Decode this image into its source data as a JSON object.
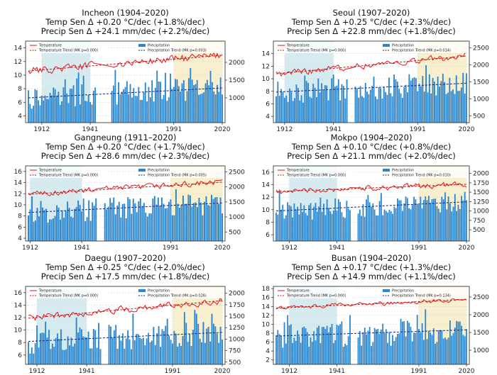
{
  "colors": {
    "temperature": "#e0262b",
    "temp_trend": "#b81d1d",
    "precip_bar": "#2b86cf",
    "precip_trend": "#1a237e",
    "shade_blue": "#cfe8ec",
    "shade_yellow": "#f6ecc4"
  },
  "legend_labels": {
    "temperature": "Temperature",
    "temp_trend": "Temperature Trend (MK p=0.000)",
    "precipitation": "Precipitation"
  },
  "chart_data": [
    {
      "type": "bar+line",
      "title": [
        "Incheon (1904–2020)",
        "Temp Sen Δ +0.20 °C/dec (+1.8%/dec)",
        "Precip Sen Δ +24.1 mm/dec (+2.2%/dec)"
      ],
      "x_range": [
        1904,
        2020
      ],
      "x_ticks": [
        1912,
        1941,
        1991,
        2020
      ],
      "shaded": [
        {
          "from": 1912,
          "to": 1941,
          "color": "blue"
        },
        {
          "from": 1991,
          "to": 2020,
          "color": "yellow"
        }
      ],
      "gap": [
        1945,
        1953
      ],
      "temp_axis": {
        "range": [
          3,
          15
        ],
        "ticks": [
          4,
          6,
          8,
          10,
          12,
          14
        ]
      },
      "precip_axis": {
        "range": [
          300,
          2600
        ],
        "ticks": [
          1000,
          1500,
          2000
        ]
      },
      "temp_start": 10.6,
      "temp_trend_slope": 0.02,
      "temp_noise": 0.5,
      "precip_start": 1000,
      "precip_trend_slope": 2.4,
      "precip_noise": 330,
      "precip_trend_label": "Precipitation Trend (MK p=0.003)"
    },
    {
      "type": "bar+line",
      "title": [
        "Seoul (1907–2020)",
        "Temp Sen Δ +0.25 °C/dec (+2.3%/dec)",
        "Precip Sen Δ +22.8 mm/dec (+1.8%/dec)"
      ],
      "x_range": [
        1907,
        2020
      ],
      "x_ticks": [
        1912,
        1941,
        1991,
        2020
      ],
      "shaded": [
        {
          "from": 1912,
          "to": 1941,
          "color": "blue"
        },
        {
          "from": 1991,
          "to": 2020,
          "color": "yellow"
        }
      ],
      "gap": [
        1950,
        1953
      ],
      "temp_axis": {
        "range": [
          3,
          16
        ],
        "ticks": [
          4,
          6,
          8,
          10,
          12,
          14
        ]
      },
      "precip_axis": {
        "range": [
          300,
          2700
        ],
        "ticks": [
          500,
          1000,
          1500,
          2000,
          2500
        ]
      },
      "temp_start": 10.8,
      "temp_trend_slope": 0.025,
      "temp_noise": 0.5,
      "precip_start": 1200,
      "precip_trend_slope": 2.3,
      "precip_noise": 350,
      "precip_trend_label": "Precipitation Trend (MK p=0.014)"
    },
    {
      "type": "bar+line",
      "title": [
        "Gangneung (1911–2020)",
        "Temp Sen Δ +0.20 °C/dec (+1.7%/dec)",
        "Precip Sen Δ +28.6 mm/dec (+2.3%/dec)"
      ],
      "x_range": [
        1911,
        2020
      ],
      "x_ticks": [
        1912,
        1941,
        1991,
        2020
      ],
      "shaded": [
        {
          "from": 1912,
          "to": 1941,
          "color": "blue"
        },
        {
          "from": 1991,
          "to": 2020,
          "color": "yellow"
        }
      ],
      "gap": [
        1950,
        1953
      ],
      "temp_axis": {
        "range": [
          3.5,
          17
        ],
        "ticks": [
          4,
          6,
          8,
          10,
          12,
          14,
          16
        ]
      },
      "precip_axis": {
        "range": [
          200,
          2700
        ],
        "ticks": [
          500,
          1000,
          1500,
          2000,
          2500
        ]
      },
      "temp_start": 11.9,
      "temp_trend_slope": 0.02,
      "temp_noise": 0.5,
      "precip_start": 1150,
      "precip_trend_slope": 2.9,
      "precip_noise": 380,
      "precip_trend_label": "Precipitation Trend (MK p=0.005)"
    },
    {
      "type": "bar+line",
      "title": [
        "Mokpo (1904–2020)",
        "Temp Sen Δ +0.10 °C/dec (+0.8%/dec)",
        "Precip Sen Δ +21.1 mm/dec (+2.0%/dec)"
      ],
      "x_range": [
        1904,
        2020
      ],
      "x_ticks": [
        1912,
        1941,
        1991,
        2020
      ],
      "shaded": [
        {
          "from": 1912,
          "to": 1941,
          "color": "blue"
        },
        {
          "from": 1991,
          "to": 2020,
          "color": "yellow"
        }
      ],
      "gap": [
        1950,
        1953
      ],
      "temp_axis": {
        "range": [
          5,
          17
        ],
        "ticks": [
          6,
          8,
          10,
          12,
          14,
          16
        ]
      },
      "precip_axis": {
        "range": [
          200,
          2200
        ],
        "ticks": [
          500,
          750,
          1000,
          1250,
          1500,
          1750,
          2000
        ]
      },
      "temp_start": 12.9,
      "temp_trend_slope": 0.01,
      "temp_noise": 0.4,
      "precip_start": 1000,
      "precip_trend_slope": 2.1,
      "precip_noise": 280,
      "precip_trend_label": "Precipitation Trend (MK p=0.010)"
    },
    {
      "type": "bar+line",
      "title": [
        "Daegu (1907–2020)",
        "Temp Sen Δ +0.25 °C/dec (+2.0%/dec)",
        "Precip Sen Δ +17.5 mm/dec (+1.8%/dec)"
      ],
      "x_range": [
        1907,
        2020
      ],
      "x_ticks": [
        1912,
        1941,
        1991,
        2020
      ],
      "shaded": [
        {
          "from": 1912,
          "to": 1941,
          "color": "blue"
        },
        {
          "from": 1991,
          "to": 2020,
          "color": "yellow"
        }
      ],
      "gap": [
        1950,
        1953
      ],
      "temp_axis": {
        "range": [
          4.5,
          17
        ],
        "ticks": [
          6,
          8,
          10,
          12,
          14,
          16
        ]
      },
      "precip_axis": {
        "range": [
          450,
          2150
        ],
        "ticks": [
          500,
          750,
          1000,
          1250,
          1500,
          1750,
          2000
        ]
      },
      "temp_start": 11.9,
      "temp_trend_slope": 0.025,
      "temp_noise": 0.5,
      "precip_start": 950,
      "precip_trend_slope": 1.75,
      "precip_noise": 280,
      "precip_trend_label": "Precipitation Trend (MK p=0.026)"
    },
    {
      "type": "bar+line",
      "title": [
        "Busan (1904–2020)",
        "Temp Sen Δ +0.17 °C/dec (+1.3%/dec)",
        "Precip Sen Δ +14.9 mm/dec (+1.1%/dec)"
      ],
      "x_range": [
        1904,
        2020
      ],
      "x_ticks": [
        1912,
        1941,
        1991,
        2020
      ],
      "shaded": [
        {
          "from": 1912,
          "to": 1941,
          "color": "blue"
        },
        {
          "from": 1991,
          "to": 2020,
          "color": "yellow"
        }
      ],
      "gap": [
        1950,
        1953
      ],
      "temp_axis": {
        "range": [
          1,
          18.5
        ],
        "ticks": [
          2,
          4,
          6,
          8,
          10,
          12,
          14,
          16,
          18
        ]
      },
      "precip_axis": {
        "range": [
          600,
          2800
        ],
        "ticks": [
          1000,
          1500,
          2000,
          2500
        ]
      },
      "temp_start": 13.6,
      "temp_trend_slope": 0.017,
      "temp_noise": 0.4,
      "precip_start": 1400,
      "precip_trend_slope": 1.5,
      "precip_noise": 380,
      "precip_trend_label": "Precipitation Trend (MK p=0.134)"
    }
  ]
}
